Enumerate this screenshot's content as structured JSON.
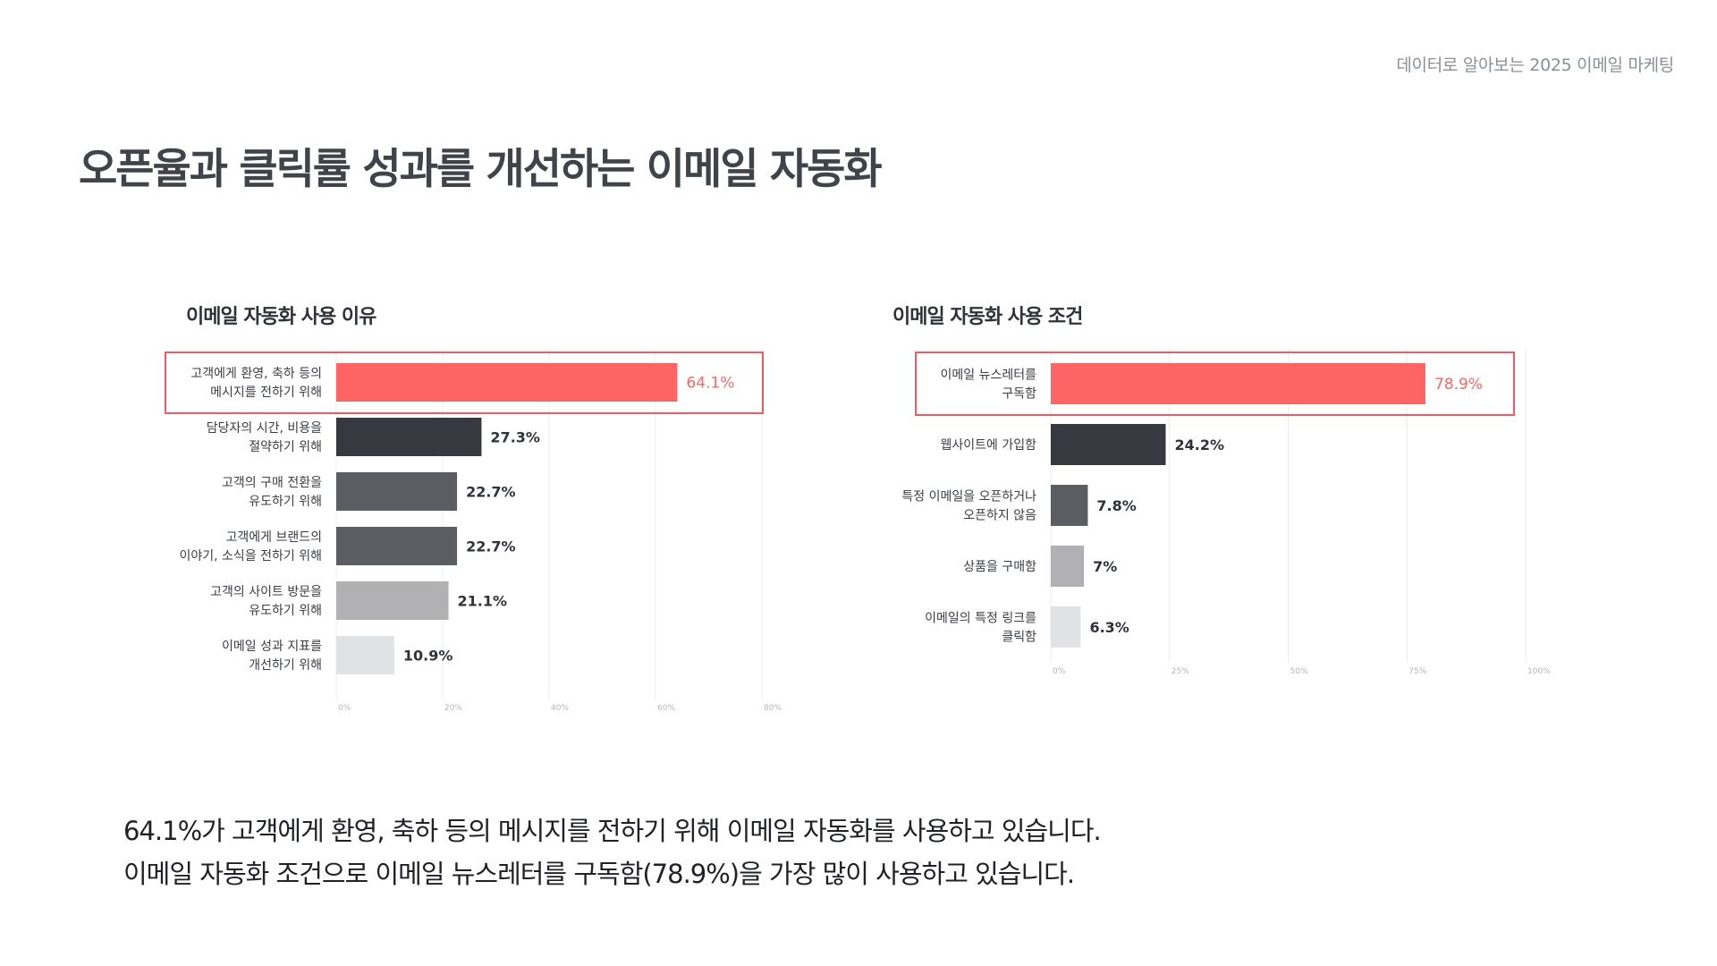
{
  "header": {
    "tag": "데이터로 알아보는 2025 이메일 마케팅"
  },
  "page": {
    "title": "오픈율과 클릭률 성과를 개선하는 이메일 자동화"
  },
  "chart_data": [
    {
      "type": "bar",
      "orientation": "horizontal",
      "title": "이메일 자동화 사용 이유",
      "categories": [
        [
          "고객에게 환영, 축하 등의",
          "메시지를 전하기 위해"
        ],
        [
          "담당자의 시간, 비용을",
          "절약하기 위해"
        ],
        [
          "고객의 구매 전환을",
          "유도하기 위해"
        ],
        [
          "고객에게 브랜드의",
          "이야기, 소식을 전하기 위해"
        ],
        [
          "고객의 사이트 방문을",
          "유도하기 위해"
        ],
        [
          "이메일 성과 지표를",
          "개선하기 위해"
        ]
      ],
      "values": [
        64.1,
        27.3,
        22.7,
        22.7,
        21.1,
        10.9
      ],
      "value_labels": [
        "64.1%",
        "27.3%",
        "22.7%",
        "22.7%",
        "21.1%",
        "10.9%"
      ],
      "colors": [
        "#ff6464",
        "#363940",
        "#5b5d62",
        "#5b5d62",
        "#b1b1b3",
        "#e1e2e5"
      ],
      "highlight_index": 0,
      "xlim": [
        0,
        80
      ],
      "ticks": [
        0,
        20,
        40,
        60,
        80
      ],
      "tick_labels": [
        "0%",
        "20%",
        "40%",
        "60%",
        "80%"
      ],
      "grid": true
    },
    {
      "type": "bar",
      "orientation": "horizontal",
      "title": "이메일 자동화 사용 조건",
      "categories": [
        [
          "이메일 뉴스레터를",
          "구독함"
        ],
        [
          "웹사이트에 가입함"
        ],
        [
          "특정 이메일을 오픈하거나",
          "오픈하지 않음"
        ],
        [
          "상품을 구매함"
        ],
        [
          "이메일의 특정 링크를",
          "클릭함"
        ]
      ],
      "values": [
        78.9,
        24.2,
        7.8,
        7,
        6.3
      ],
      "value_labels": [
        "78.9%",
        "24.2%",
        "7.8%",
        "7%",
        "6.3%"
      ],
      "colors": [
        "#ff6464",
        "#363940",
        "#5b5d62",
        "#b1b1b3",
        "#e1e2e5"
      ],
      "highlight_index": 0,
      "xlim": [
        0,
        100
      ],
      "ticks": [
        0,
        25,
        50,
        75,
        100
      ],
      "tick_labels": [
        "0%",
        "25%",
        "50%",
        "75%",
        "100%"
      ],
      "grid": true
    }
  ],
  "summary": {
    "line1": "64.1%가 고객에게 환영, 축하 등의 메시지를 전하기 위해 이메일 자동화를 사용하고 있습니다.",
    "line2": "이메일 자동화 조건으로 이메일 뉴스레터를 구독함(78.9%)을 가장 많이 사용하고 있습니다."
  },
  "colors": {
    "accent": "#ff6464",
    "highlight_border": "#f05a64",
    "grid": "#ececee",
    "tick_text": "#b4b6ba"
  }
}
